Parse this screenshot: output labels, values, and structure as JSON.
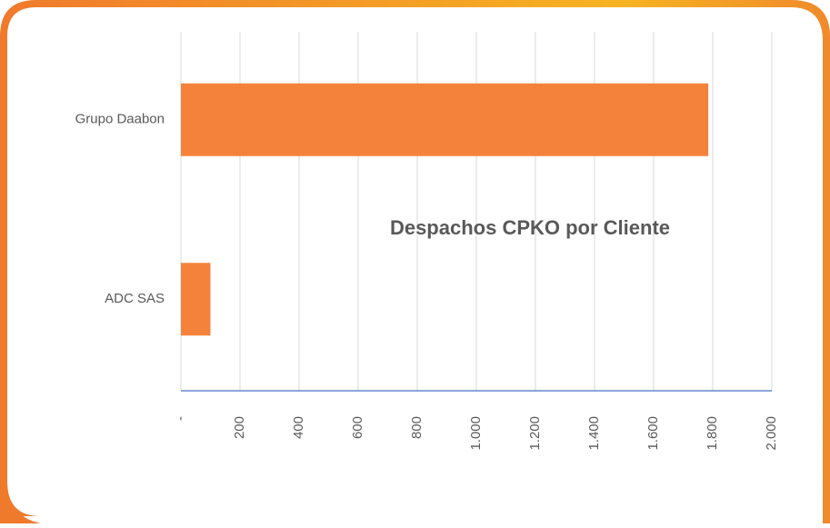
{
  "chart_data": {
    "type": "bar",
    "orientation": "horizontal",
    "title": "Despachos CPKO por Cliente",
    "categories": [
      "Grupo Daabon",
      "ADC SAS"
    ],
    "values": [
      1785,
      100
    ],
    "color": "#f5823a",
    "xlim": [
      0,
      2000
    ],
    "xticks": [
      {
        "value": 0,
        "label": "-"
      },
      200,
      400,
      600,
      800,
      {
        "value": 1000,
        "label": "1.000"
      },
      {
        "value": 1200,
        "label": "1.200"
      },
      {
        "value": 1400,
        "label": "1.400"
      },
      {
        "value": 1600,
        "label": "1.600"
      },
      {
        "value": 1800,
        "label": "1.800"
      },
      {
        "value": 2000,
        "label": "2.000"
      }
    ],
    "grid": true
  }
}
